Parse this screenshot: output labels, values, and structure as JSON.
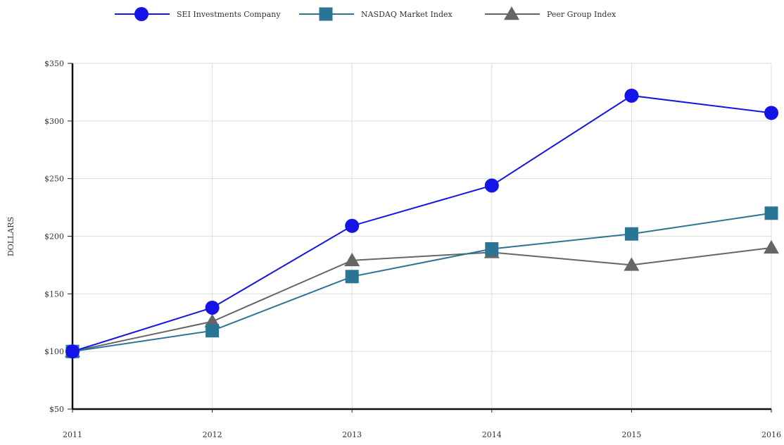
{
  "chart_data": {
    "type": "line",
    "title": "",
    "xlabel": "",
    "ylabel": "DOLLARS",
    "categories": [
      "2011",
      "2012",
      "2013",
      "2014",
      "2015",
      "2016"
    ],
    "y_ticks": [
      "$50",
      "$100",
      "$150",
      "$200",
      "$250",
      "$300",
      "$350"
    ],
    "y_tick_values": [
      50,
      100,
      150,
      200,
      250,
      300,
      350
    ],
    "ylim": [
      50,
      350
    ],
    "grid": true,
    "legend_position": "top",
    "series": [
      {
        "name": "SEI Investments Company",
        "values": [
          100,
          138,
          209,
          244,
          322,
          307
        ],
        "color": "#1414e6",
        "marker": "circle"
      },
      {
        "name": "NASDAQ Market Index",
        "values": [
          100,
          118,
          165,
          189,
          202,
          220
        ],
        "color": "#2a7495",
        "marker": "square"
      },
      {
        "name": "Peer Group Index",
        "values": [
          100,
          126,
          179,
          186,
          175,
          190
        ],
        "color": "#666666",
        "marker": "triangle"
      }
    ]
  }
}
